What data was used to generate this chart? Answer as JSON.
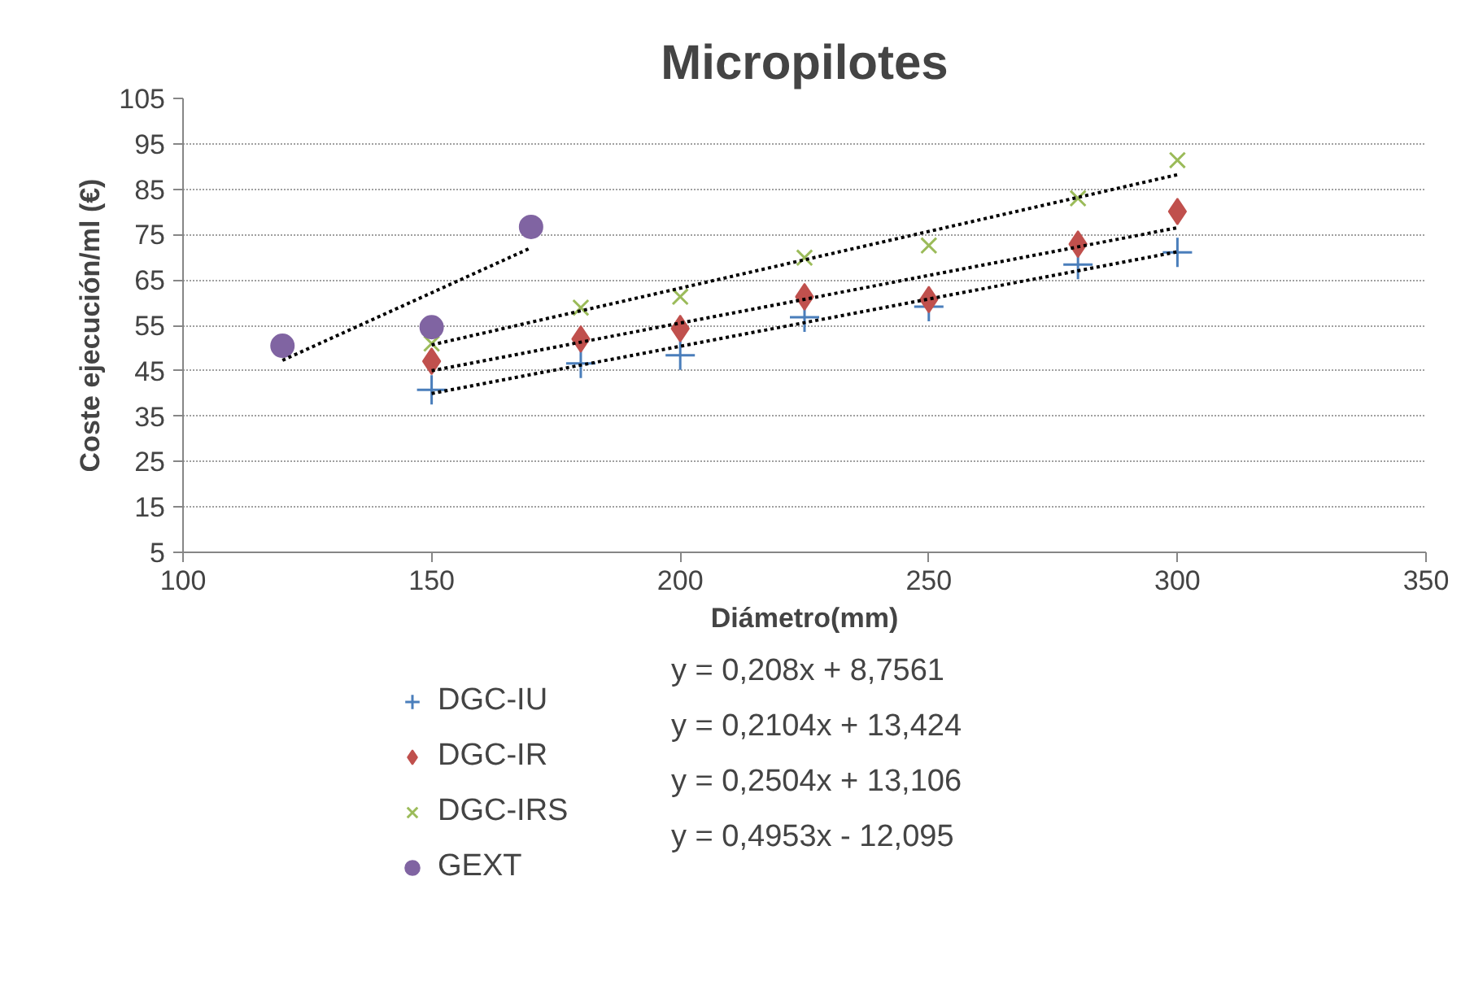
{
  "chart_data": {
    "type": "scatter",
    "title": "Micropilotes",
    "xlabel": "Diámetro(mm)",
    "ylabel": "Coste ejecución/ml (€)",
    "xlim": [
      100,
      350
    ],
    "xticks": [
      100,
      150,
      200,
      250,
      300,
      350
    ],
    "ylim": [
      5,
      105
    ],
    "yticks": [
      5,
      15,
      25,
      35,
      45,
      55,
      65,
      75,
      85,
      95,
      105
    ],
    "grid": "y",
    "legend": "bottom",
    "annotations": [
      "y = 0,208x + 8,7561",
      "y = 0,2104x + 13,424",
      "y = 0,2504x + 13,106",
      "y = 0,4953x - 12,095"
    ],
    "series": [
      {
        "name": "DGC-IU",
        "color": "#4a7ebb",
        "marker": "cross",
        "x": [
          150,
          180,
          200,
          225,
          250,
          280,
          300
        ],
        "values": [
          40.8,
          46.6,
          48.4,
          56.8,
          59.1,
          68.4,
          71.1
        ]
      },
      {
        "name": "DGC-IR",
        "color": "#c0504d",
        "marker": "diamond",
        "x": [
          150,
          180,
          200,
          225,
          250,
          280,
          300
        ],
        "values": [
          47.1,
          52.0,
          54.3,
          61.3,
          60.7,
          72.9,
          80.1
        ]
      },
      {
        "name": "DGC-IRS",
        "color": "#9bbb59",
        "marker": "x",
        "x": [
          150,
          180,
          200,
          225,
          250,
          280,
          300
        ],
        "values": [
          51.0,
          58.9,
          61.3,
          69.9,
          72.6,
          83.0,
          91.4
        ]
      },
      {
        "name": "GEXT",
        "color": "#8064a2",
        "marker": "circle",
        "x": [
          120,
          150,
          170
        ],
        "values": [
          50.5,
          54.6,
          76.7
        ]
      },
      {
        "type": "line",
        "color": "#000000",
        "line_style": "dotted",
        "marker": "none",
        "x": [
          150,
          300
        ],
        "values": [
          40.0,
          71.2
        ]
      },
      {
        "type": "line",
        "color": "#000000",
        "line_style": "dotted",
        "marker": "none",
        "x": [
          150,
          300
        ],
        "values": [
          45.0,
          76.5
        ]
      },
      {
        "type": "line",
        "color": "#000000",
        "line_style": "dotted",
        "marker": "none",
        "x": [
          150,
          300
        ],
        "values": [
          50.7,
          88.2
        ]
      },
      {
        "type": "line",
        "color": "#000000",
        "line_style": "dotted",
        "marker": "none",
        "x": [
          120,
          170
        ],
        "values": [
          47.3,
          72.1
        ]
      }
    ]
  }
}
